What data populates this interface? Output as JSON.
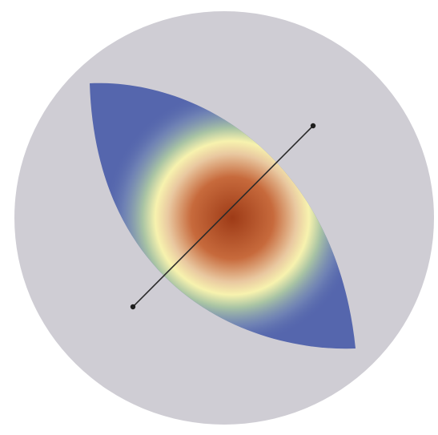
{
  "colors": {
    "background": "#ffffff",
    "outer_ellipse": "#cfcdd4",
    "lens_fill": "#5566ad",
    "heat_center": "#9e3b17",
    "heat_mid": "#c76a3c",
    "heat_ring": "#f7f2ae",
    "heat_outer": "#a9c4a4",
    "segment_line": "#2a2a2a",
    "segment_endpoint": "#1e1e1e"
  },
  "elements": {
    "outer_ellipse": "outer-ellipse",
    "lens": "lens-shape",
    "heat_spot": "heat-spot",
    "segment": "measurement-line",
    "endpoints": [
      "line-endpoint-top",
      "line-endpoint-bottom"
    ]
  }
}
